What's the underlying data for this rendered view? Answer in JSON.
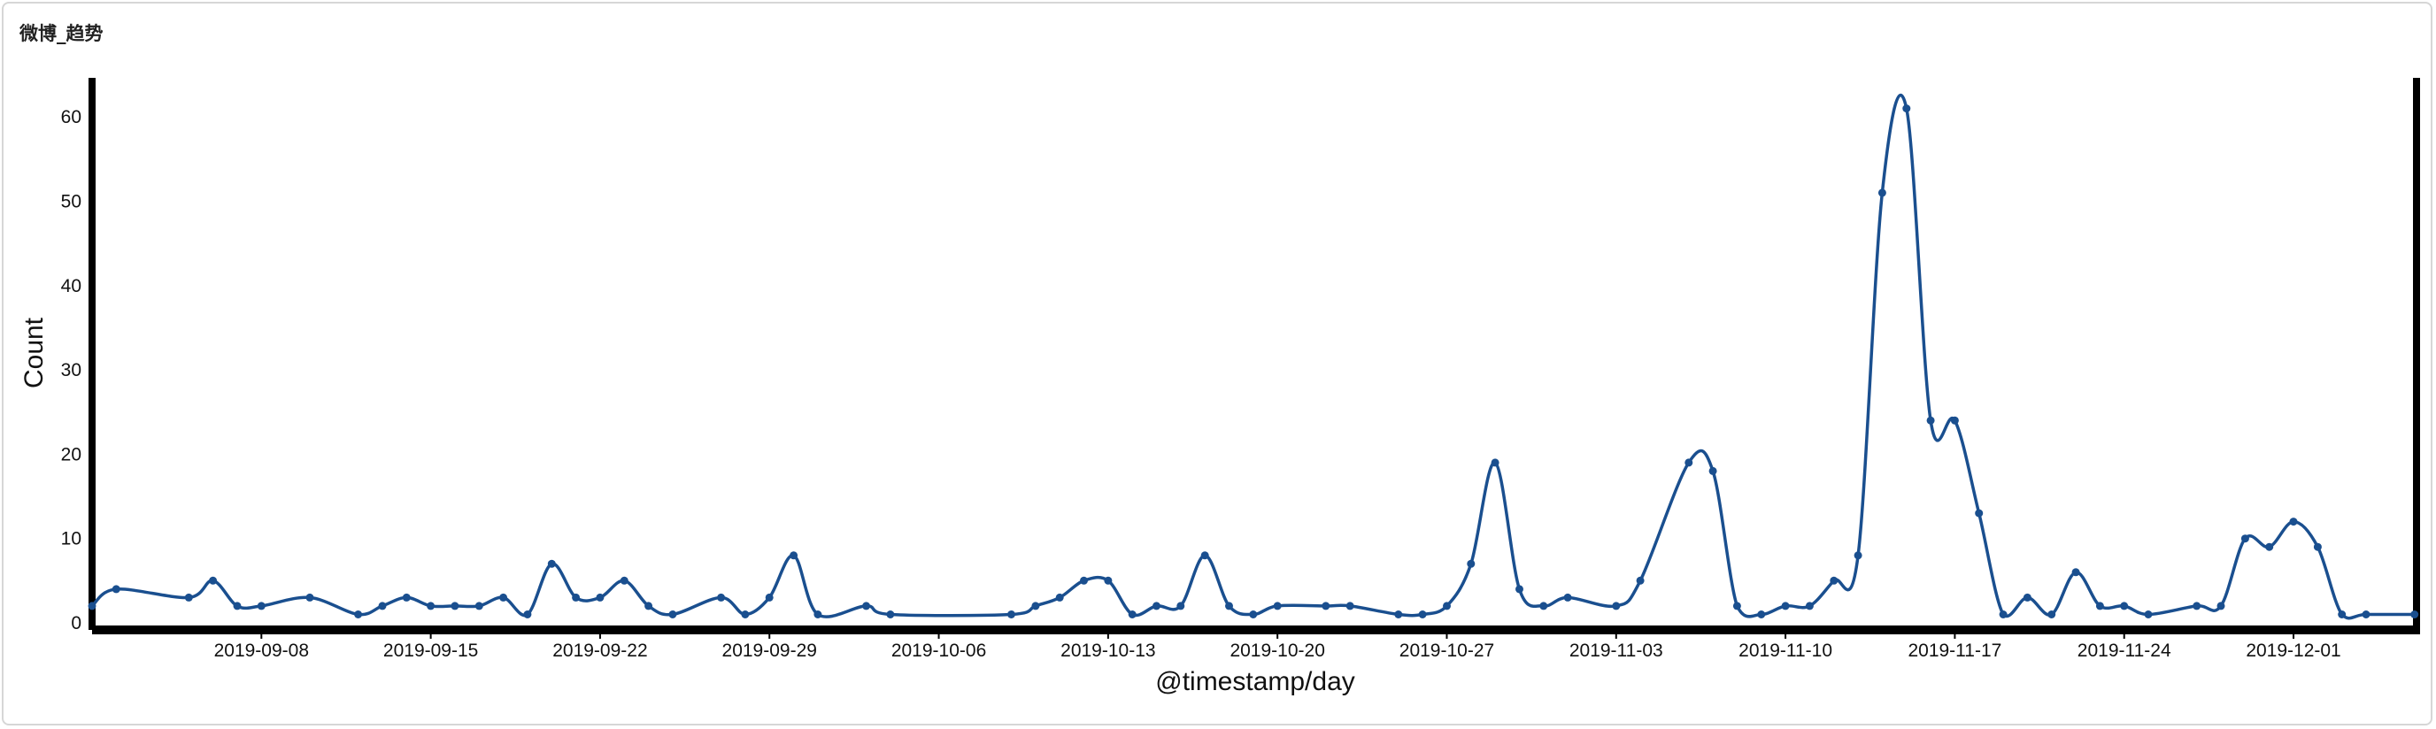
{
  "panel": {
    "title": "微博_趋势"
  },
  "chart_data": {
    "type": "line",
    "title": "",
    "xlabel": "@timestamp/day",
    "ylabel": "Count",
    "x_ticks": [
      "2019-09-08",
      "2019-09-15",
      "2019-09-22",
      "2019-09-29",
      "2019-10-06",
      "2019-10-13",
      "2019-10-20",
      "2019-10-27",
      "2019-11-03",
      "2019-11-10",
      "2019-11-17",
      "2019-11-24",
      "2019-12-01"
    ],
    "y_ticks": [
      0,
      10,
      20,
      30,
      40,
      50,
      60
    ],
    "ylim": [
      0,
      64
    ],
    "xlim": [
      "2019-09-01",
      "2019-12-06"
    ],
    "grid": false,
    "legend": "none",
    "line_color": "#1a4f8f",
    "series": [
      {
        "x": [
          "2019-09-01",
          "2019-09-02",
          "2019-09-05",
          "2019-09-06",
          "2019-09-07",
          "2019-09-08",
          "2019-09-10",
          "2019-09-12",
          "2019-09-13",
          "2019-09-14",
          "2019-09-15",
          "2019-09-16",
          "2019-09-17",
          "2019-09-18",
          "2019-09-19",
          "2019-09-20",
          "2019-09-21",
          "2019-09-22",
          "2019-09-23",
          "2019-09-24",
          "2019-09-25",
          "2019-09-27",
          "2019-09-28",
          "2019-09-29",
          "2019-09-30",
          "2019-10-01",
          "2019-10-03",
          "2019-10-04",
          "2019-10-09",
          "2019-10-10",
          "2019-10-11",
          "2019-10-12",
          "2019-10-13",
          "2019-10-14",
          "2019-10-15",
          "2019-10-16",
          "2019-10-17",
          "2019-10-18",
          "2019-10-19",
          "2019-10-20",
          "2019-10-22",
          "2019-10-23",
          "2019-10-25",
          "2019-10-26",
          "2019-10-27",
          "2019-10-28",
          "2019-10-29",
          "2019-10-30",
          "2019-10-31",
          "2019-11-01",
          "2019-11-03",
          "2019-11-04",
          "2019-11-06",
          "2019-11-07",
          "2019-11-08",
          "2019-11-09",
          "2019-11-10",
          "2019-11-11",
          "2019-11-12",
          "2019-11-13",
          "2019-11-14",
          "2019-11-15",
          "2019-11-16",
          "2019-11-17",
          "2019-11-18",
          "2019-11-19",
          "2019-11-20",
          "2019-11-21",
          "2019-11-22",
          "2019-11-23",
          "2019-11-24",
          "2019-11-25",
          "2019-11-27",
          "2019-11-28",
          "2019-11-29",
          "2019-11-30",
          "2019-12-01",
          "2019-12-02",
          "2019-12-03",
          "2019-12-04",
          "2019-12-06"
        ],
        "y": [
          2,
          4,
          3,
          5,
          2,
          2,
          3,
          1,
          2,
          3,
          2,
          2,
          2,
          3,
          1,
          7,
          3,
          3,
          5,
          2,
          1,
          3,
          1,
          3,
          8,
          1,
          2,
          1,
          1,
          2,
          3,
          5,
          5,
          1,
          2,
          2,
          8,
          2,
          1,
          2,
          2,
          2,
          1,
          1,
          2,
          7,
          19,
          4,
          2,
          3,
          2,
          5,
          19,
          18,
          2,
          1,
          2,
          2,
          5,
          8,
          51,
          61,
          24,
          24,
          13,
          1,
          3,
          1,
          6,
          2,
          2,
          1,
          2,
          2,
          10,
          9,
          12,
          9,
          1,
          1,
          1
        ]
      }
    ]
  }
}
